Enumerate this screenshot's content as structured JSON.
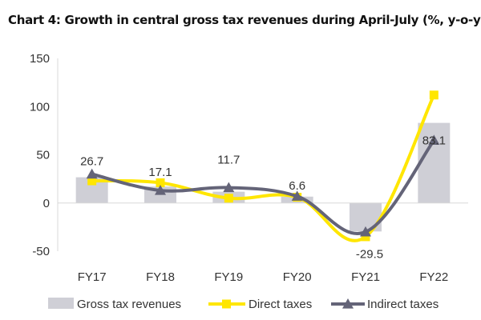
{
  "chart_data": {
    "type": "bar",
    "title": "Chart 4: Growth in central gross tax revenues during April-July (%, y-o-y)",
    "xlabel": "",
    "ylabel": "",
    "categories": [
      "FY17",
      "FY18",
      "FY19",
      "FY20",
      "FY21",
      "FY22"
    ],
    "ylim": [
      -50,
      150
    ],
    "yticks": [
      150,
      100,
      50,
      0,
      -50
    ],
    "grid": false,
    "legend_position": "bottom",
    "series": [
      {
        "name": "Gross tax revenues",
        "type": "bar",
        "color": "#cfcfd6",
        "values": [
          26.7,
          17.1,
          11.7,
          6.6,
          -29.5,
          83.1
        ],
        "labels": [
          "26.7",
          "17.1",
          "11.7",
          "6.6",
          "-29.5",
          "83.1"
        ]
      },
      {
        "name": "Direct taxes",
        "type": "line",
        "marker": "square",
        "color": "#ffe600",
        "values": [
          23,
          21,
          5,
          6,
          -35,
          112
        ]
      },
      {
        "name": "Indirect taxes",
        "type": "line",
        "marker": "triangle",
        "color": "#646478",
        "values": [
          30,
          13,
          16,
          7,
          -30,
          65
        ]
      }
    ]
  }
}
